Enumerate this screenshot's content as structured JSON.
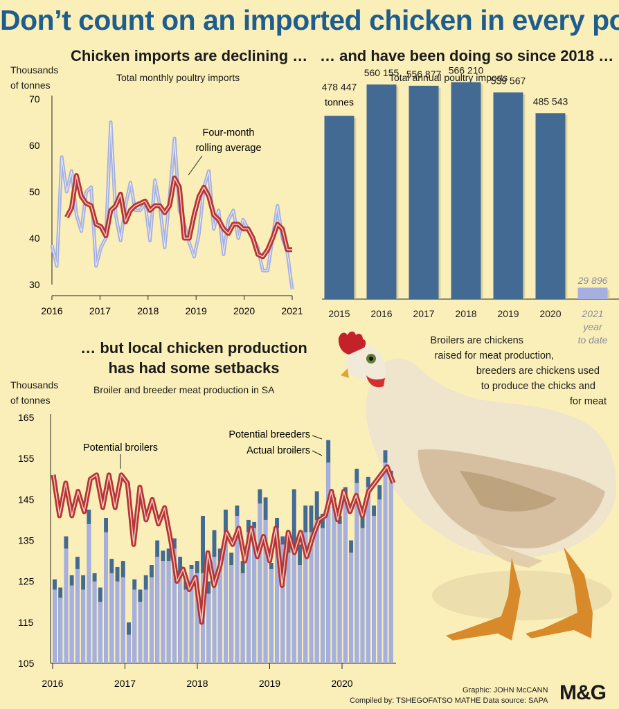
{
  "title": "Don’t count on an imported chicken in every pot",
  "chart_data": [
    {
      "type": "line",
      "heading": "Chicken imports are declining …",
      "subtitle": "Total monthly poultry imports",
      "ylabel": [
        "Thousands",
        "of tonnes"
      ],
      "ylim": [
        30,
        70
      ],
      "yticks": [
        30,
        40,
        50,
        60,
        70
      ],
      "xlim": [
        2016,
        2021
      ],
      "xticks": [
        2016,
        2017,
        2018,
        2019,
        2020,
        2021
      ],
      "annotation": [
        "Four-month",
        "rolling average"
      ],
      "series": [
        {
          "values": [
            38.5,
            34,
            57.5,
            50,
            54.5,
            45,
            41.5,
            50,
            51,
            34,
            38,
            40,
            65,
            45,
            39.5,
            47,
            52,
            46,
            46,
            47.5,
            39.5,
            52.5,
            47,
            38,
            49,
            61.5,
            46,
            43,
            39,
            36,
            41,
            51,
            54.5,
            42,
            46,
            36.5,
            44,
            46,
            40,
            44,
            42,
            40,
            38,
            33,
            33,
            40,
            47,
            40,
            37,
            29
          ]
        },
        {
          "name": "Four-month rolling average",
          "values": [
            null,
            null,
            null,
            44.5,
            46.5,
            53.5,
            49,
            47.5,
            47,
            43,
            42.5,
            40.5,
            46,
            47,
            49.5,
            43.5,
            46,
            47,
            47.5,
            48,
            46,
            47,
            47,
            45.5,
            47,
            53,
            51,
            40,
            40,
            45,
            49,
            51,
            49,
            45,
            44,
            42,
            41,
            43,
            43,
            42,
            42,
            40,
            36.5,
            36,
            37.5,
            40,
            43,
            42,
            37.5,
            37.5
          ]
        }
      ]
    },
    {
      "type": "bar",
      "heading": "… and have been doing so since 2018 …",
      "subtitle": "Total annual poultry imports",
      "categories": [
        "2015",
        "2016",
        "2017",
        "2018",
        "2019",
        "2020",
        "2021"
      ],
      "values": [
        478447,
        560155,
        556877,
        566210,
        539567,
        485543,
        29896
      ],
      "labels": [
        "478 447",
        "560 155",
        "556 877",
        "566 210",
        "539 567",
        "485 543",
        "29 896"
      ],
      "first_unit": "tonnes",
      "last_note": [
        "year",
        "to date"
      ],
      "colors": {
        "bar": "#436a92",
        "partial": "#a6b0e0"
      },
      "ylim": [
        0,
        600000
      ]
    },
    {
      "type": "bar",
      "heading": [
        "… but local chicken production",
        "has had some setbacks"
      ],
      "subtitle": "Broiler and breeder meat production in SA",
      "ylabel": [
        "Thousands",
        "of tonnes"
      ],
      "ylim": [
        105,
        165
      ],
      "yticks": [
        105,
        115,
        125,
        135,
        145,
        155,
        165
      ],
      "xlim": [
        2016,
        2020.75
      ],
      "xticks": [
        2016,
        2017,
        2018,
        2019,
        2020
      ],
      "legend": {
        "breeders": "Potential breeders",
        "actual": "Actual broilers",
        "potential": "Potential broilers"
      },
      "colors": {
        "actual": "#a6b0e0",
        "breeders": "#436a92",
        "potential": "#b73434"
      },
      "series": [
        {
          "name": "Actual broilers",
          "values": [
            123,
            121,
            133,
            124,
            128,
            123,
            139,
            125,
            120,
            137,
            127,
            125,
            126,
            112,
            123,
            120,
            123,
            126,
            131,
            130,
            130,
            133,
            127,
            123,
            128,
            127,
            127,
            122,
            131,
            130,
            137,
            129,
            141,
            127,
            137,
            138,
            144,
            140,
            128,
            138,
            134,
            132,
            134,
            129,
            137,
            137,
            140,
            138,
            154,
            143,
            139,
            145,
            132,
            149,
            138,
            148,
            141,
            145,
            154,
            150
          ]
        },
        {
          "name": "Potential breeders",
          "values": [
            125.5,
            123.5,
            136,
            126.5,
            131,
            126.5,
            142.5,
            127,
            123.5,
            140.5,
            130.5,
            128.5,
            130,
            115,
            125.5,
            123,
            126.5,
            129,
            135,
            132.5,
            133,
            135.5,
            131,
            126,
            129,
            130,
            141,
            125,
            137.5,
            133,
            142.5,
            132,
            143.5,
            130,
            140,
            139.5,
            147.5,
            145.5,
            129.5,
            140.5,
            136,
            134.5,
            147.5,
            134,
            143.5,
            143.5,
            147,
            141.5,
            159.5,
            145.5,
            141,
            148,
            135,
            152.5,
            141,
            150.5,
            143.5,
            148.5,
            157,
            152
          ]
        },
        {
          "name": "Potential broilers",
          "values": [
            151,
            141,
            149,
            141,
            147,
            142,
            150,
            151,
            143,
            151,
            143,
            151,
            149,
            134,
            148,
            140,
            145,
            139,
            143,
            135,
            125,
            128,
            123,
            126,
            115,
            132,
            124,
            129,
            137,
            134,
            138,
            130,
            138,
            131,
            136,
            130,
            138,
            124,
            137,
            132,
            137,
            131,
            136,
            140,
            141,
            147,
            140,
            147,
            142,
            146,
            141,
            147,
            149,
            151,
            153,
            149
          ]
        }
      ]
    }
  ],
  "caption": [
    "Broilers are chickens",
    "raised for meat production,",
    "breeders are chickens used",
    "to produce the chicks and",
    "for meat"
  ],
  "credits": {
    "graphic": "Graphic: JOHN McCANN",
    "compiled": "Compiled by: TSHEGOFATSO MATHE  Data source: SAPA",
    "logo": "M&G"
  }
}
